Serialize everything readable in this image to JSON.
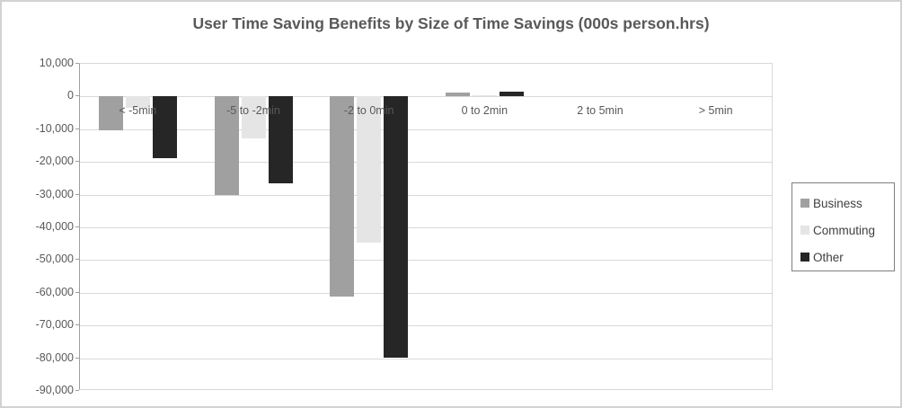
{
  "frame": {
    "background": "#ffffff",
    "border_color": "#d2d2d2"
  },
  "chart_data": {
    "type": "bar",
    "title": "User Time Saving Benefits by Size of Time Savings (000s person.hrs)",
    "categories": [
      "< -5min",
      "-5 to -2min",
      "-2 to 0min",
      "0 to 2min",
      "2 to 5min",
      "> 5min"
    ],
    "series": [
      {
        "name": "Business",
        "color": "#a0a0a0",
        "values": [
          -10400,
          -30200,
          -61200,
          1100,
          0,
          0
        ]
      },
      {
        "name": "Commuting",
        "color": "#e5e5e5",
        "values": [
          -3600,
          -12900,
          -44700,
          500,
          0,
          0
        ]
      },
      {
        "name": "Other",
        "color": "#262626",
        "values": [
          -18800,
          -26600,
          -79900,
          1600,
          0,
          0
        ]
      }
    ],
    "ylim": [
      -90000,
      10000
    ],
    "ytick_step": 10000,
    "ytick_labels_top_to_bottom": [
      "10,000",
      "0",
      "-10,000",
      "-20,000",
      "-30,000",
      "-40,000",
      "-50,000",
      "-60,000",
      "-70,000",
      "-80,000",
      "-90,000"
    ],
    "grid": true,
    "xlabel": "",
    "ylabel": "",
    "legend": {
      "position": "right",
      "entries": [
        "Business",
        "Commuting",
        "Other"
      ]
    },
    "styles": {
      "title_color": "#595959",
      "axis_label_color": "#595959",
      "category_label_color": "#595959",
      "gridline_color": "#d9d9d9",
      "axis_line_color": "#9f9f9f",
      "legend_text_color": "#404040",
      "legend_border_color": "#7f7f7f"
    }
  }
}
